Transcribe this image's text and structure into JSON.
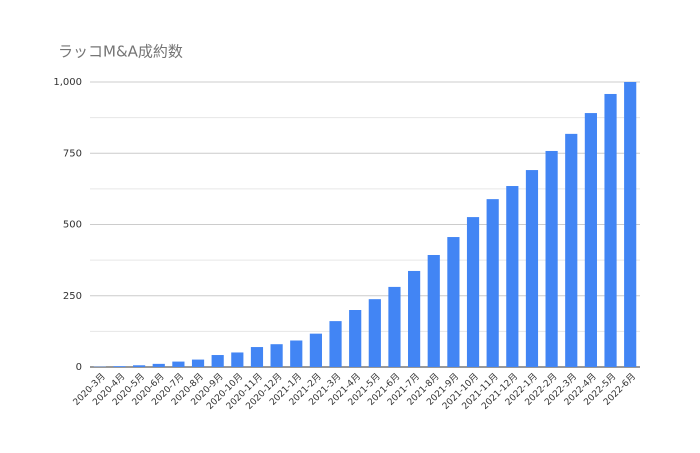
{
  "chart_data": {
    "type": "bar",
    "title": "ラッコM&A成約数",
    "categories": [
      "2020-3月",
      "2020-4月",
      "2020-5月",
      "2020-6月",
      "2020-7月",
      "2020-8月",
      "2020-9月",
      "2020-10月",
      "2020-11月",
      "2020-12月",
      "2021-1月",
      "2021-2月",
      "2021-3月",
      "2021-4月",
      "2021-5月",
      "2021-6月",
      "2021-7月",
      "2021-8月",
      "2021-9月",
      "2021-10月",
      "2021-11月",
      "2021-12月",
      "2022-1月",
      "2022-2月",
      "2022-3月",
      "2022-4月",
      "2022-5月",
      "2022-6月"
    ],
    "values": [
      1,
      3,
      6,
      11,
      19,
      26,
      42,
      51,
      70,
      80,
      93,
      117,
      161,
      200,
      238,
      281,
      337,
      393,
      456,
      526,
      589,
      635,
      691,
      758,
      818,
      891,
      958,
      1000
    ],
    "color": "#4285f4",
    "ylim": [
      0,
      1000
    ],
    "yticks": [
      0,
      250,
      500,
      750,
      {
        "value": 1000,
        "label": "1,000"
      }
    ],
    "minor_yticks": [
      125,
      375,
      625,
      875
    ],
    "grid": true
  }
}
